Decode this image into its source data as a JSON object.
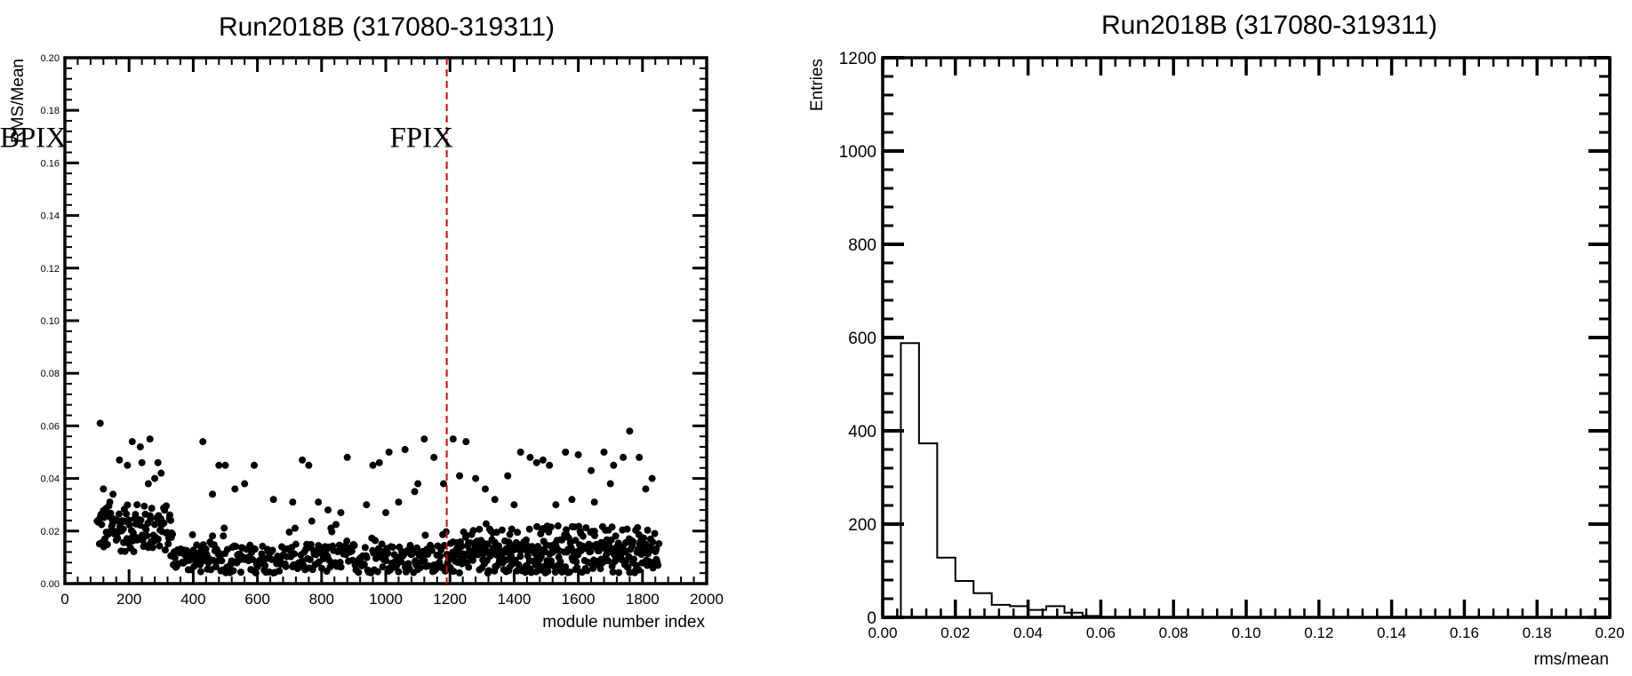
{
  "chart_data": [
    {
      "type": "scatter",
      "title": "Run2018B (317080-319311)",
      "xlabel": "module number index",
      "ylabel": "RMS/Mean",
      "xlim": [
        0,
        2000
      ],
      "ylim": [
        0,
        0.2
      ],
      "x_ticks": [
        "0",
        "200",
        "400",
        "600",
        "800",
        "1000",
        "1200",
        "1400",
        "1600",
        "1800",
        "2000"
      ],
      "y_ticks": [
        "0.00",
        "0.02",
        "0.04",
        "0.06",
        "0.08",
        "0.10",
        "0.12",
        "0.14",
        "0.16",
        "0.18",
        "0.20"
      ],
      "divider_x": 1190,
      "divider_color": "#dd0000",
      "marker_color": "#000000",
      "annotations": [
        {
          "text": "BPIX",
          "x": 400,
          "y": 0.166
        },
        {
          "text": "FPIX",
          "x": 1610,
          "y": 0.166
        }
      ],
      "points": [
        [
          110,
          0.061
        ],
        [
          120,
          0.036
        ],
        [
          210,
          0.054
        ],
        [
          265,
          0.055
        ],
        [
          235,
          0.052
        ],
        [
          240,
          0.046
        ],
        [
          290,
          0.046
        ],
        [
          300,
          0.042
        ],
        [
          170,
          0.047
        ],
        [
          195,
          0.045
        ],
        [
          260,
          0.038
        ],
        [
          280,
          0.04
        ],
        [
          150,
          0.034
        ],
        [
          140,
          0.031
        ],
        [
          225,
          0.03
        ],
        [
          430,
          0.054
        ],
        [
          480,
          0.045
        ],
        [
          500,
          0.045
        ],
        [
          590,
          0.045
        ],
        [
          560,
          0.038
        ],
        [
          530,
          0.036
        ],
        [
          460,
          0.034
        ],
        [
          650,
          0.032
        ],
        [
          710,
          0.031
        ],
        [
          740,
          0.047
        ],
        [
          760,
          0.045
        ],
        [
          790,
          0.031
        ],
        [
          820,
          0.028
        ],
        [
          880,
          0.048
        ],
        [
          960,
          0.045
        ],
        [
          980,
          0.046
        ],
        [
          1010,
          0.05
        ],
        [
          1060,
          0.051
        ],
        [
          1120,
          0.055
        ],
        [
          1150,
          0.048
        ],
        [
          1180,
          0.038
        ],
        [
          1090,
          0.035
        ],
        [
          1040,
          0.031
        ],
        [
          940,
          0.03
        ],
        [
          860,
          0.027
        ],
        [
          1000,
          0.027
        ],
        [
          1100,
          0.038
        ],
        [
          1210,
          0.055
        ],
        [
          1250,
          0.054
        ],
        [
          1230,
          0.041
        ],
        [
          1280,
          0.04
        ],
        [
          1310,
          0.036
        ],
        [
          1340,
          0.032
        ],
        [
          1380,
          0.041
        ],
        [
          1420,
          0.05
        ],
        [
          1450,
          0.048
        ],
        [
          1470,
          0.046
        ],
        [
          1490,
          0.047
        ],
        [
          1510,
          0.045
        ],
        [
          1560,
          0.05
        ],
        [
          1600,
          0.049
        ],
        [
          1640,
          0.043
        ],
        [
          1680,
          0.05
        ],
        [
          1710,
          0.045
        ],
        [
          1740,
          0.048
        ],
        [
          1760,
          0.058
        ],
        [
          1790,
          0.048
        ],
        [
          1830,
          0.04
        ],
        [
          1810,
          0.036
        ],
        [
          1700,
          0.038
        ],
        [
          1650,
          0.031
        ],
        [
          1580,
          0.032
        ],
        [
          1530,
          0.03
        ],
        [
          1400,
          0.03
        ]
      ]
    },
    {
      "type": "bar",
      "title": "Run2018B (317080-319311)",
      "xlabel": "rms/mean",
      "ylabel": "Entries",
      "xlim": [
        0,
        0.2
      ],
      "ylim": [
        0,
        1200
      ],
      "x_ticks": [
        "0.00",
        "0.02",
        "0.04",
        "0.06",
        "0.08",
        "0.10",
        "0.12",
        "0.14",
        "0.16",
        "0.18",
        "0.20"
      ],
      "y_ticks": [
        "0",
        "200",
        "400",
        "600",
        "800",
        "1000",
        "1200"
      ],
      "bin_width": 0.005,
      "bin_edges_start": 0.0,
      "values": [
        0,
        588,
        373,
        128,
        78,
        52,
        27,
        24,
        16,
        24,
        10,
        3,
        0
      ]
    }
  ]
}
